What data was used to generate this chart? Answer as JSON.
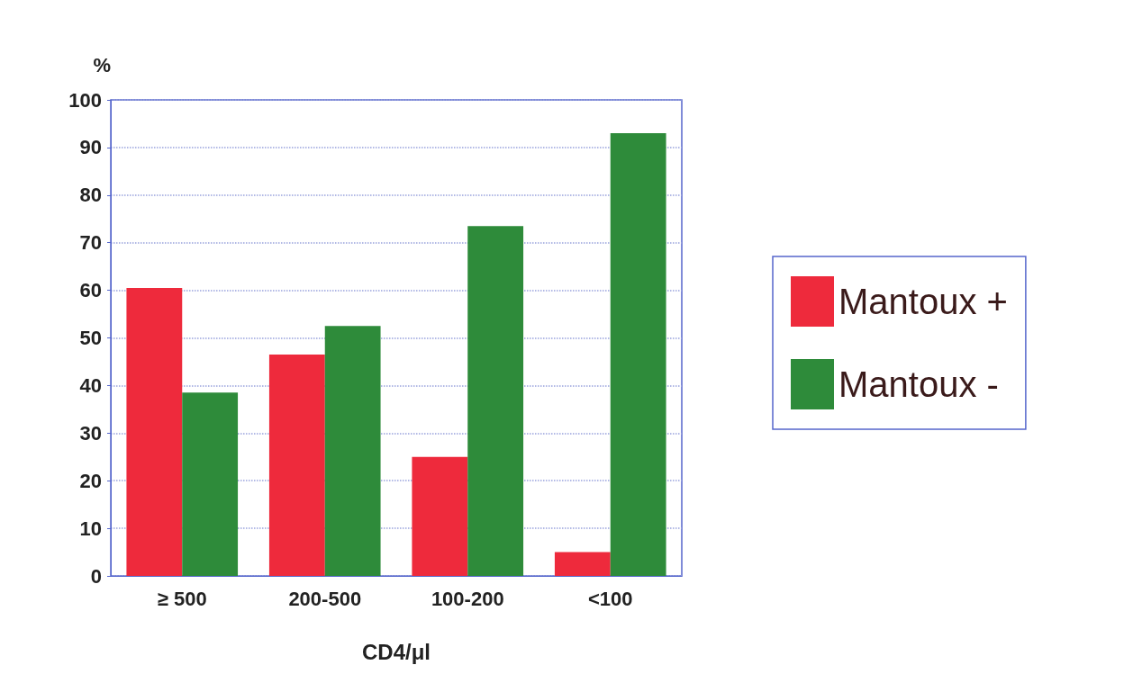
{
  "chart_data": {
    "type": "bar",
    "ylabel": "%",
    "xlabel": "CD4/μl",
    "categories": [
      "≥ 500",
      "200-500",
      "100-200",
      "<100"
    ],
    "series": [
      {
        "name": "Mantoux +",
        "color": "#ee2a3c",
        "values": [
          60.5,
          46.5,
          25,
          5
        ]
      },
      {
        "name": "Mantoux -",
        "color": "#2e8b3a",
        "values": [
          38.5,
          52.5,
          73.5,
          93
        ]
      }
    ],
    "ylim": [
      0,
      100
    ],
    "yticks": [
      0,
      10,
      20,
      30,
      40,
      50,
      60,
      70,
      80,
      90,
      100
    ],
    "grid": "y",
    "legend": "right"
  }
}
